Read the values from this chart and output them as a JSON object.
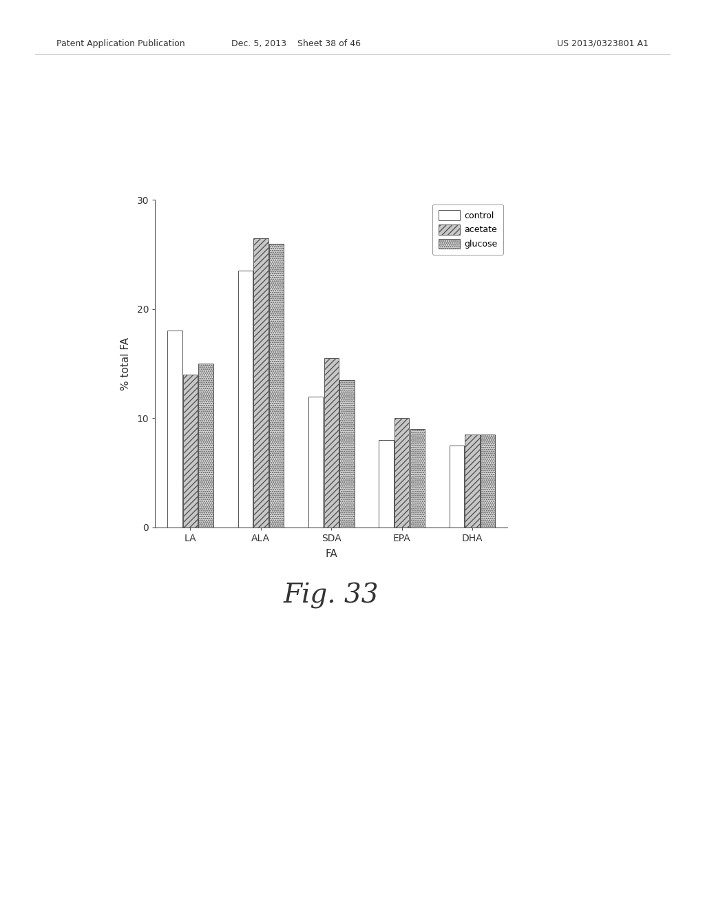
{
  "categories": [
    "LA",
    "ALA",
    "SDA",
    "EPA",
    "DHA"
  ],
  "xlabel": "FA",
  "ylabel": "% total FA",
  "ylim": [
    0,
    30
  ],
  "yticks": [
    0,
    10,
    20,
    30
  ],
  "series": {
    "control": [
      18.0,
      23.5,
      12.0,
      8.0,
      7.5
    ],
    "acetate": [
      14.0,
      26.5,
      15.5,
      10.0,
      8.5
    ],
    "glucose": [
      15.0,
      26.0,
      13.5,
      9.0,
      8.5
    ]
  },
  "bar_width": 0.22,
  "figure_title": "Fig. 33",
  "header_left": "Patent Application Publication",
  "header_center": "Dec. 5, 2013    Sheet 38 of 46",
  "header_right": "US 2013/0323801 A1",
  "background_color": "#ffffff",
  "bar_colors": {
    "control": "#ffffff",
    "acetate": "#c8c8c8",
    "glucose": "#d8d8d8"
  },
  "bar_edgecolor": "#555555",
  "hatch_patterns": {
    "control": "",
    "acetate": "////",
    "glucose": "......"
  },
  "font_color": "#333333",
  "header_fontsize": 9,
  "axis_fontsize": 11,
  "tick_fontsize": 10,
  "title_fontsize": 28
}
